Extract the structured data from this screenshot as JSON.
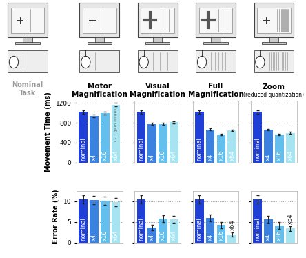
{
  "figure": {
    "row_label": "Nominal\nTask"
  },
  "chart_data": [
    {
      "type": "bar",
      "title": "Motor\nMagnification",
      "y_label": "Movement Time (ms)",
      "categories": [
        "nominal",
        "x4",
        "x16",
        "x64"
      ],
      "values": [
        1020,
        940,
        1000,
        1170
      ],
      "errors": [
        35,
        25,
        25,
        30
      ],
      "colors": [
        "#1f3fd6",
        "#3b82e0",
        "#63c0ee",
        "#a6e4f2"
      ],
      "ylim": [
        0,
        1250
      ],
      "yticks": [
        0,
        400,
        800,
        1200
      ],
      "grid": true,
      "tick_labels": "y",
      "annotations": [
        {
          "text": "C-D gain issues",
          "category": "x64"
        }
      ]
    },
    {
      "type": "bar",
      "title": "Visual\nMagnification",
      "categories": [
        "nominal",
        "x4",
        "x16",
        "x64"
      ],
      "values": [
        1020,
        780,
        780,
        810
      ],
      "errors": [
        35,
        25,
        25,
        25
      ],
      "colors": [
        "#1f3fd6",
        "#3b82e0",
        "#63c0ee",
        "#a6e4f2"
      ],
      "ylim": [
        0,
        1250
      ],
      "yticks": [
        0,
        400,
        800,
        1200
      ],
      "grid": true,
      "tick_labels": false
    },
    {
      "type": "bar",
      "title": "Full\nMagnification",
      "categories": [
        "nominal",
        "x4",
        "x16",
        "x64"
      ],
      "values": [
        1020,
        670,
        560,
        650
      ],
      "errors": [
        35,
        15,
        15,
        15
      ],
      "colors": [
        "#1f3fd6",
        "#3b82e0",
        "#63c0ee",
        "#a6e4f2"
      ],
      "ylim": [
        0,
        1250
      ],
      "yticks": [
        0,
        400,
        800,
        1200
      ],
      "grid": true,
      "tick_labels": false
    },
    {
      "type": "bar",
      "title": "Zoom",
      "subtitle": "(reduced quantization)",
      "categories": [
        "nominal",
        "x4",
        "x16",
        "x64"
      ],
      "values": [
        1020,
        660,
        570,
        600
      ],
      "errors": [
        35,
        15,
        15,
        15
      ],
      "colors": [
        "#1f3fd6",
        "#3b82e0",
        "#63c0ee",
        "#a6e4f2"
      ],
      "ylim": [
        0,
        1250
      ],
      "yticks": [
        0,
        400,
        800,
        1200
      ],
      "grid": true,
      "tick_labels": false
    },
    {
      "type": "bar",
      "y_label": "Error Rate (%)",
      "categories": [
        "nominal",
        "x4",
        "x16",
        "x64"
      ],
      "values": [
        10.5,
        10.3,
        10.2,
        9.8
      ],
      "errors": [
        1.0,
        1.0,
        1.0,
        1.0
      ],
      "colors": [
        "#1f3fd6",
        "#3b82e0",
        "#63c0ee",
        "#a6e4f2"
      ],
      "ylim": [
        0,
        12.5
      ],
      "yticks": [
        0,
        5,
        10
      ],
      "grid": true,
      "tick_labels": "y"
    },
    {
      "type": "bar",
      "categories": [
        "nominal",
        "x4",
        "x16",
        "x64"
      ],
      "values": [
        10.5,
        3.6,
        5.8,
        5.6
      ],
      "errors": [
        1.0,
        0.7,
        0.8,
        0.8
      ],
      "colors": [
        "#1f3fd6",
        "#3b82e0",
        "#63c0ee",
        "#a6e4f2"
      ],
      "ylim": [
        0,
        12.5
      ],
      "yticks": [
        0,
        5,
        10
      ],
      "grid": true,
      "tick_labels": false
    },
    {
      "type": "bar",
      "categories": [
        "nominal",
        "x4",
        "x16",
        "x64"
      ],
      "values": [
        10.5,
        5.9,
        4.2,
        2.0
      ],
      "errors": [
        1.0,
        0.8,
        0.8,
        0.5
      ],
      "colors": [
        "#1f3fd6",
        "#3b82e0",
        "#63c0ee",
        "#a6e4f2"
      ],
      "ylim": [
        0,
        12.5
      ],
      "yticks": [
        0,
        5,
        10
      ],
      "grid": true,
      "tick_labels": false
    },
    {
      "type": "bar",
      "categories": [
        "nominal",
        "x4",
        "x16",
        "x64"
      ],
      "values": [
        10.5,
        5.6,
        4.1,
        3.4
      ],
      "errors": [
        1.0,
        0.8,
        0.8,
        0.6
      ],
      "colors": [
        "#1f3fd6",
        "#3b82e0",
        "#63c0ee",
        "#a6e4f2"
      ],
      "ylim": [
        0,
        12.5
      ],
      "yticks": [
        0,
        5,
        10
      ],
      "grid": true,
      "tick_labels": false
    }
  ]
}
